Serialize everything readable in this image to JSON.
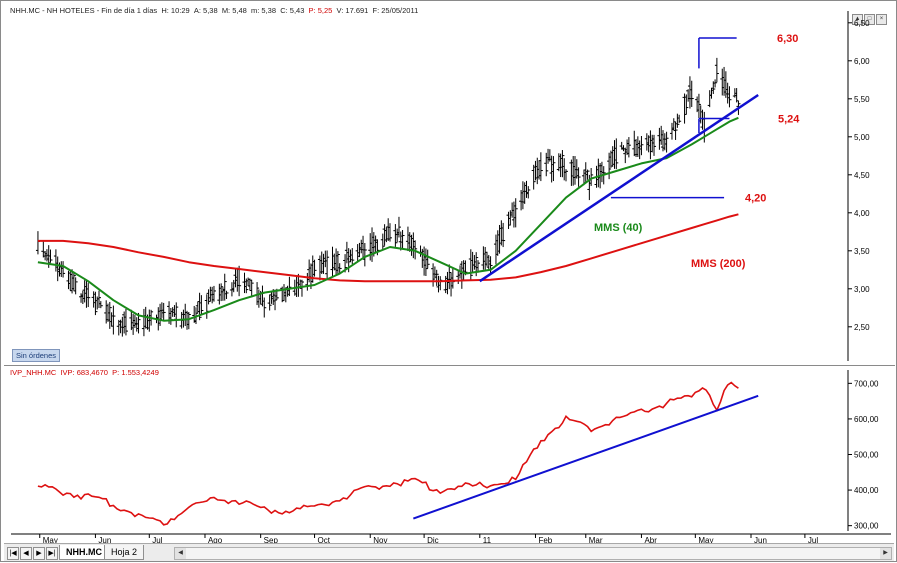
{
  "main_pane": {
    "header": {
      "symbol": "NHH.MC",
      "name": "NH HOTELES",
      "period": "Fin de día 1 días",
      "hora": "H: 10:29",
      "apertura": "A: 5,38",
      "maximo": "M: 5,48",
      "minimo": "m: 5,38",
      "cierre": "C: 5,43",
      "precio": "P: 5,25",
      "volumen": "V: 17.691",
      "fecha": "F: 25/05/2011"
    },
    "badge": "Sin órdenes"
  },
  "lower_pane": {
    "header": {
      "indicator": "IVP_NHH.MC",
      "ivp": "IVP: 683,4670",
      "precio": "P: 1.553,4249"
    }
  },
  "x_axis": {
    "labels": [
      "May",
      "Jun",
      "Jul",
      "Ago",
      "Sep",
      "Oct",
      "Nov",
      "Dic",
      "11",
      "Feb",
      "Mar",
      "Abr",
      "May",
      "Jun",
      "Jul"
    ]
  },
  "colors": {
    "price_bars": "#000000",
    "mms200": "#dd1111",
    "mms40": "#1a8a1a",
    "trendline": "#1010d0",
    "annotation": "#dd1111",
    "ivp_line": "#dd1111"
  },
  "chart_data": [
    {
      "type": "ohlc",
      "title": "NHH.MC - NH HOTELES",
      "x": [
        "2010-04-30",
        "2010-05-14",
        "2010-05-28",
        "2010-06-11",
        "2010-06-25",
        "2010-07-09",
        "2010-07-23",
        "2010-08-06",
        "2010-08-20",
        "2010-09-03",
        "2010-09-17",
        "2010-10-01",
        "2010-10-15",
        "2010-10-29",
        "2010-11-12",
        "2010-11-26",
        "2010-12-10",
        "2010-12-24",
        "2011-01-07",
        "2011-01-21",
        "2011-02-04",
        "2011-02-18",
        "2011-03-04",
        "2011-03-18",
        "2011-04-01",
        "2011-04-15",
        "2011-04-29",
        "2011-05-06",
        "2011-05-13",
        "2011-05-20",
        "2011-05-25"
      ],
      "series": [
        {
          "name": "Precio",
          "values": [
            3.6,
            3.2,
            2.9,
            2.6,
            2.5,
            2.7,
            2.6,
            2.9,
            3.15,
            2.85,
            2.95,
            3.25,
            3.35,
            3.5,
            3.75,
            3.6,
            3.05,
            3.25,
            3.4,
            4.05,
            4.6,
            4.65,
            4.4,
            4.75,
            4.9,
            4.95,
            5.6,
            5.15,
            5.9,
            5.55,
            5.43
          ]
        },
        {
          "name": "MMS (200)",
          "values": [
            3.63,
            3.63,
            3.6,
            3.55,
            3.48,
            3.42,
            3.35,
            3.3,
            3.26,
            3.22,
            3.18,
            3.14,
            3.11,
            3.1,
            3.1,
            3.1,
            3.1,
            3.11,
            3.12,
            3.15,
            3.22,
            3.3,
            3.4,
            3.5,
            3.6,
            3.7,
            3.8,
            3.85,
            3.9,
            3.95,
            3.98
          ]
        },
        {
          "name": "MMS (40)",
          "values": [
            3.35,
            3.3,
            3.1,
            2.85,
            2.65,
            2.58,
            2.6,
            2.72,
            2.85,
            2.95,
            3.0,
            3.05,
            3.2,
            3.42,
            3.55,
            3.5,
            3.35,
            3.2,
            3.25,
            3.5,
            3.85,
            4.2,
            4.45,
            4.55,
            4.65,
            4.72,
            4.9,
            5.0,
            5.1,
            5.2,
            5.25
          ]
        }
      ],
      "annotations": [
        {
          "text": "6,30",
          "value": 6.3
        },
        {
          "text": "5,24",
          "value": 5.24
        },
        {
          "text": "4,20",
          "value": 4.2
        },
        {
          "text": "MMS (40)"
        },
        {
          "text": "MMS (200)"
        }
      ],
      "trendline": {
        "from": [
          "2011-01-01",
          3.1
        ],
        "to": [
          "2011-06-05",
          5.55
        ]
      },
      "y_ticks": [
        "6,50",
        "6,00",
        "5,50",
        "5,00",
        "4,50",
        "4,00",
        "3,50",
        "3,00",
        "2,50"
      ],
      "ylim": [
        2.05,
        6.55
      ],
      "grid": false
    },
    {
      "type": "line",
      "title": "IVP_NHH.MC",
      "x": [
        "2010-04-30",
        "2010-05-14",
        "2010-05-28",
        "2010-06-11",
        "2010-06-25",
        "2010-07-09",
        "2010-07-23",
        "2010-08-06",
        "2010-08-20",
        "2010-09-03",
        "2010-09-17",
        "2010-10-01",
        "2010-10-15",
        "2010-10-29",
        "2010-11-12",
        "2010-11-26",
        "2010-12-10",
        "2010-12-24",
        "2011-01-07",
        "2011-01-21",
        "2011-02-04",
        "2011-02-18",
        "2011-03-04",
        "2011-03-18",
        "2011-04-01",
        "2011-04-15",
        "2011-04-29",
        "2011-05-06",
        "2011-05-13",
        "2011-05-20",
        "2011-05-25"
      ],
      "series": [
        {
          "name": "IVP",
          "values": [
            410,
            395,
            380,
            360,
            330,
            305,
            355,
            375,
            370,
            345,
            340,
            355,
            375,
            400,
            420,
            425,
            400,
            410,
            415,
            430,
            540,
            600,
            570,
            600,
            620,
            645,
            660,
            700,
            630,
            700,
            683
          ]
        }
      ],
      "trendline": {
        "from": [
          "2010-11-25",
          320
        ],
        "to": [
          "2011-06-05",
          665
        ]
      },
      "y_ticks": [
        "700,00",
        "600,00",
        "500,00",
        "400,00",
        "300,00"
      ],
      "ylim": [
        285,
        715
      ],
      "grid": false
    }
  ],
  "bottom_bar": {
    "nav_buttons": [
      "|◀",
      "◀",
      "▶",
      "▶|"
    ],
    "sheets": [
      "NHH.MC",
      "Hoja 2"
    ]
  }
}
